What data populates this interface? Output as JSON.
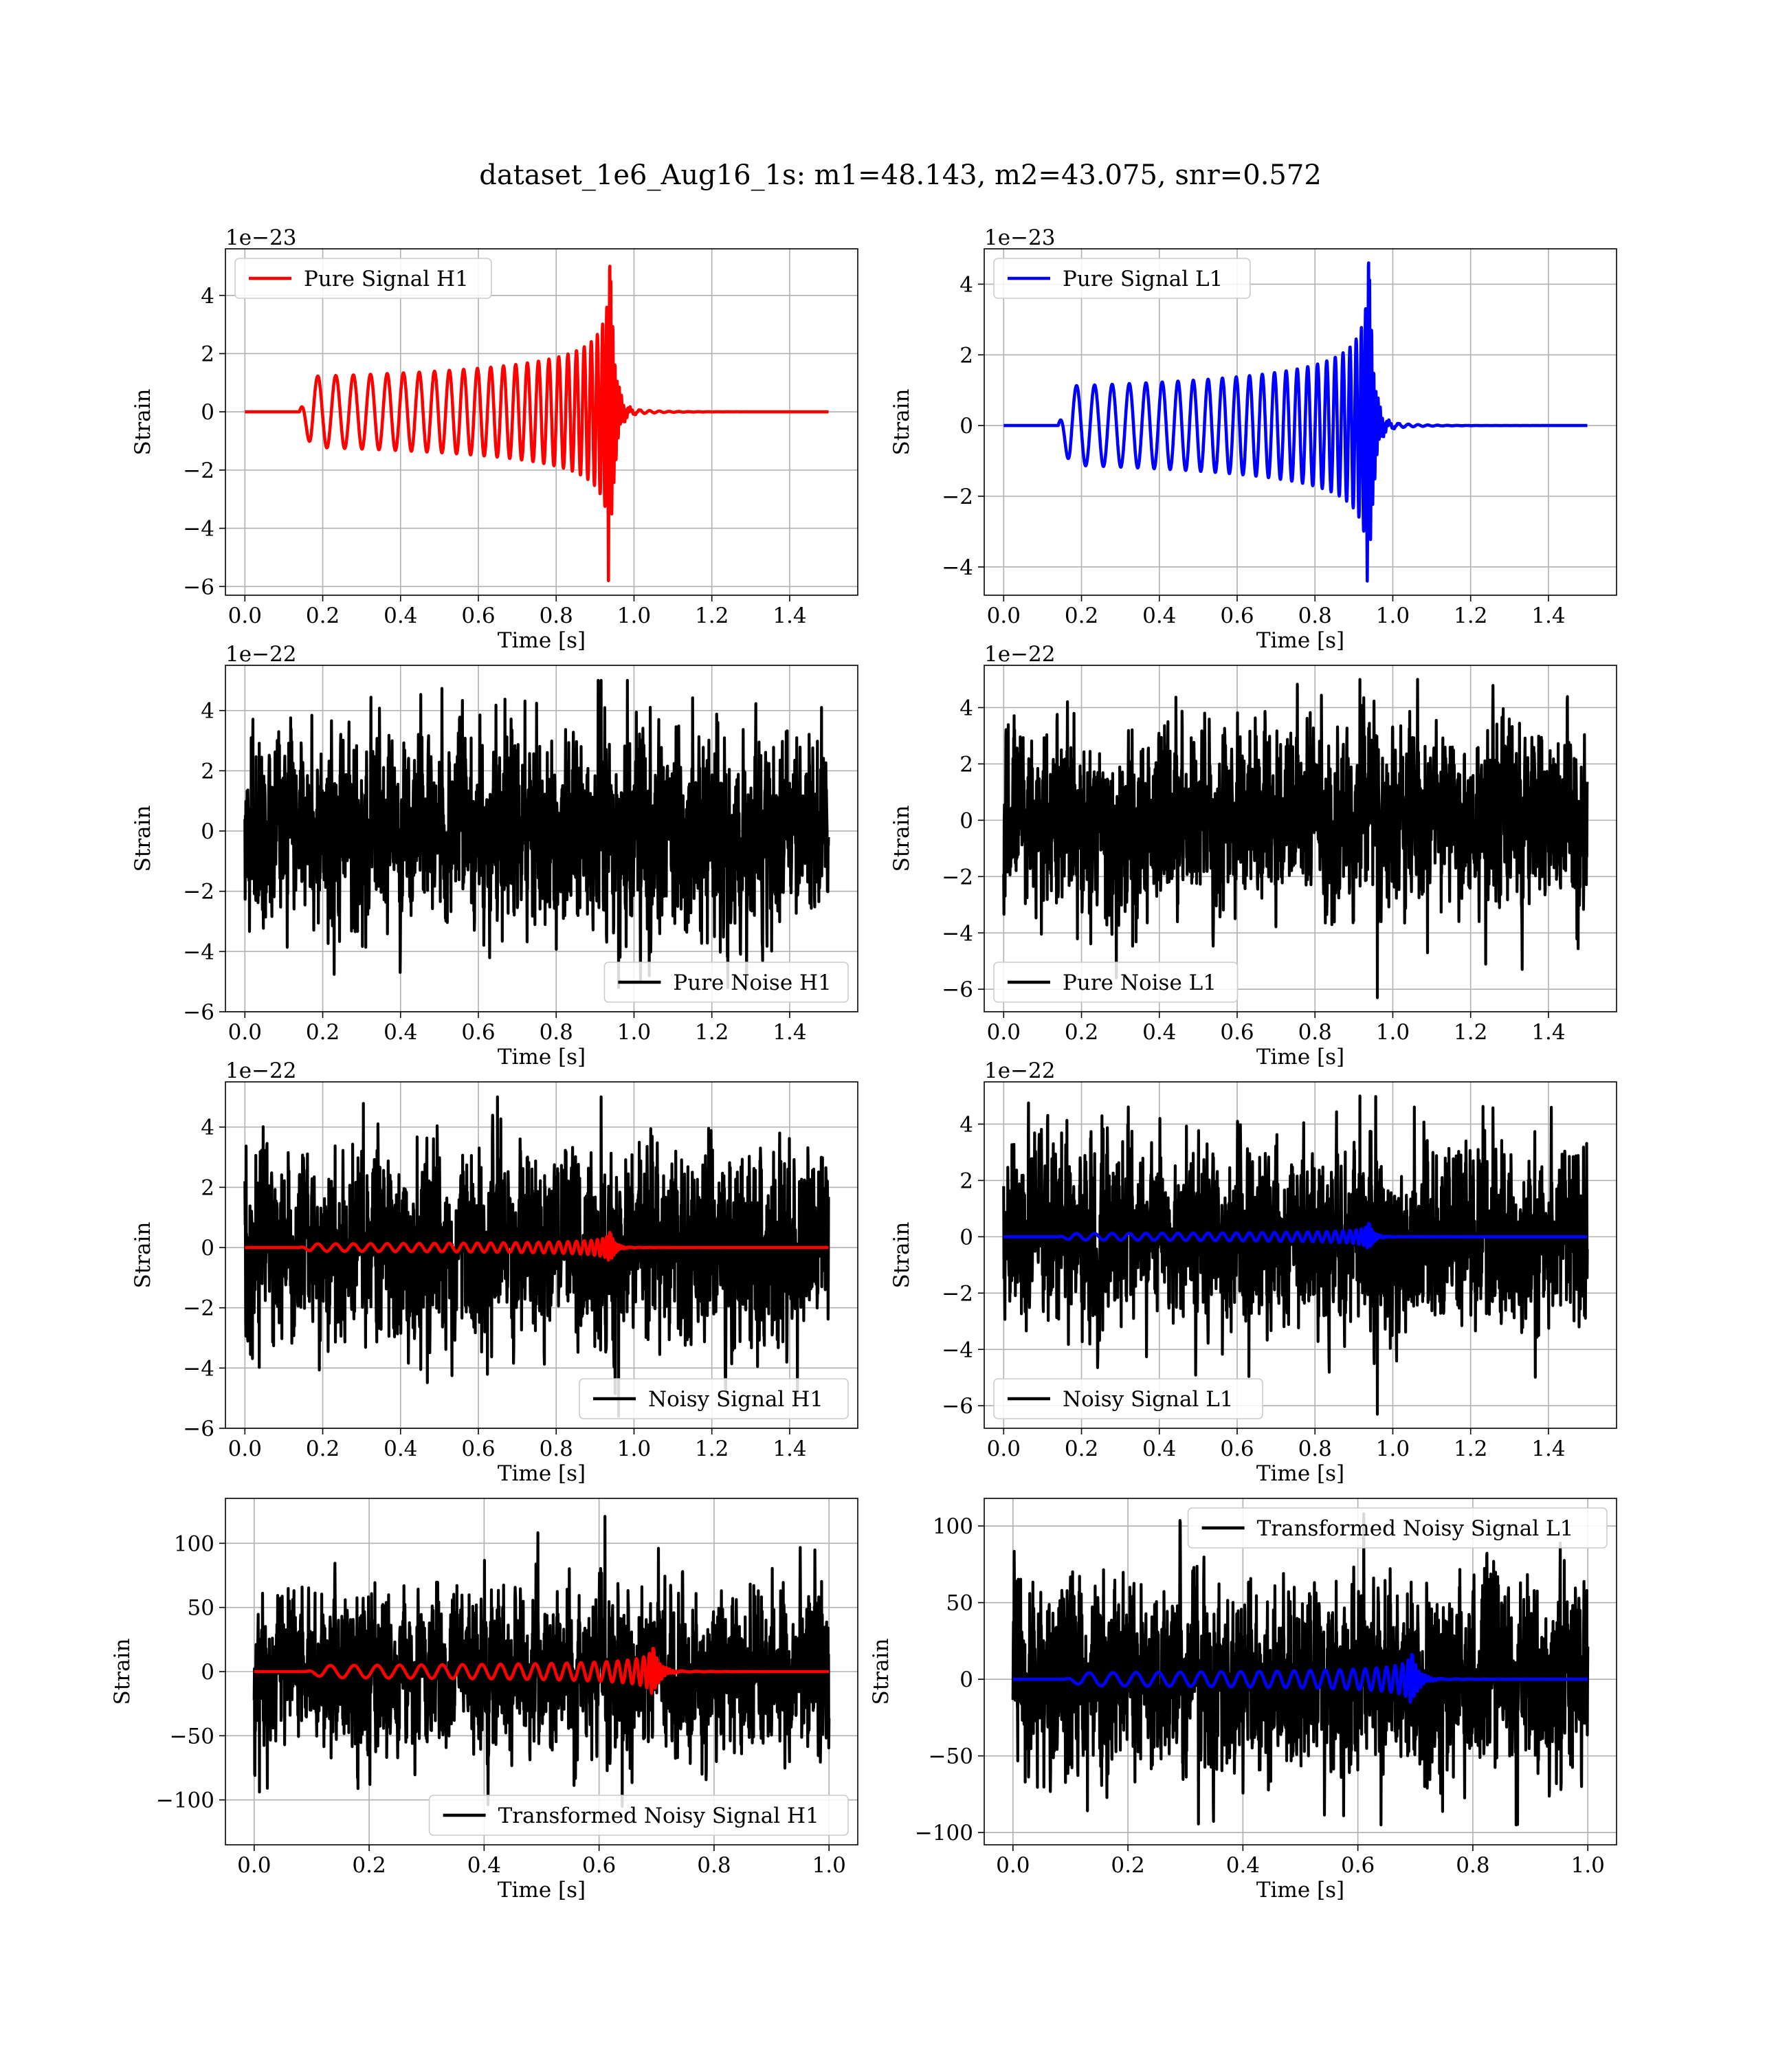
{
  "suptitle": "dataset_1e6_Aug16_1s: m1=48.143, m2=43.075, snr=0.572",
  "colors": {
    "h1": "#ff0000",
    "l1": "#0000ff",
    "noise": "#000000",
    "grid": "#b0b0b0"
  },
  "chart_data": [
    {
      "type": "line",
      "id": "pure-signal-h1",
      "xlabel": "Time [s]",
      "ylabel": "Strain",
      "offset_text": "1e−23",
      "xlim": [
        -0.05,
        1.575
      ],
      "ylim": [
        -6.3,
        5.6
      ],
      "xticks": [
        0.0,
        0.2,
        0.4,
        0.6,
        0.8,
        1.0,
        1.2,
        1.4
      ],
      "xtick_labels": [
        "0.0",
        "0.2",
        "0.4",
        "0.6",
        "0.8",
        "1.0",
        "1.2",
        "1.4"
      ],
      "yticks": [
        -6,
        -4,
        -2,
        0,
        2,
        4
      ],
      "ytick_labels": [
        "−6",
        "−4",
        "−2",
        "0",
        "2",
        "4"
      ],
      "legend": {
        "placement": "upper left",
        "entries": [
          {
            "label": "Pure Signal H1",
            "color": "#ff0000"
          }
        ]
      },
      "series": [
        {
          "name": "Pure Signal H1",
          "kind": "chirp",
          "color": "#ff0000",
          "t_start": 0.0,
          "t_end": 1.5,
          "t_onset": 0.14,
          "t_merger": 0.94,
          "min_value": -5.8,
          "max_value": 5.0,
          "peak_amplitude": 5.0
        }
      ]
    },
    {
      "type": "line",
      "id": "pure-signal-l1",
      "xlabel": "Time [s]",
      "ylabel": "Strain",
      "offset_text": "1e−23",
      "xlim": [
        -0.05,
        1.575
      ],
      "ylim": [
        -4.8,
        5.0
      ],
      "xticks": [
        0.0,
        0.2,
        0.4,
        0.6,
        0.8,
        1.0,
        1.2,
        1.4
      ],
      "xtick_labels": [
        "0.0",
        "0.2",
        "0.4",
        "0.6",
        "0.8",
        "1.0",
        "1.2",
        "1.4"
      ],
      "yticks": [
        -4,
        -2,
        0,
        2,
        4
      ],
      "ytick_labels": [
        "−4",
        "−2",
        "0",
        "2",
        "4"
      ],
      "legend": {
        "placement": "upper left",
        "entries": [
          {
            "label": "Pure Signal L1",
            "color": "#0000ff"
          }
        ]
      },
      "series": [
        {
          "name": "Pure Signal L1",
          "kind": "chirp",
          "color": "#0000ff",
          "t_start": 0.0,
          "t_end": 1.5,
          "t_onset": 0.14,
          "t_merger": 0.94,
          "min_value": -4.4,
          "max_value": 4.7,
          "peak_amplitude": 4.6
        }
      ]
    },
    {
      "type": "line",
      "id": "pure-noise-h1",
      "xlabel": "Time [s]",
      "ylabel": "Strain",
      "offset_text": "1e−22",
      "xlim": [
        -0.05,
        1.575
      ],
      "ylim": [
        -6.0,
        5.5
      ],
      "xticks": [
        0.0,
        0.2,
        0.4,
        0.6,
        0.8,
        1.0,
        1.2,
        1.4
      ],
      "xtick_labels": [
        "0.0",
        "0.2",
        "0.4",
        "0.6",
        "0.8",
        "1.0",
        "1.2",
        "1.4"
      ],
      "yticks": [
        -6,
        -4,
        -2,
        0,
        2,
        4
      ],
      "ytick_labels": [
        "−6",
        "−4",
        "−2",
        "0",
        "2",
        "4"
      ],
      "legend": {
        "placement": "lower right",
        "entries": [
          {
            "label": "Pure Noise H1",
            "color": "#000000"
          }
        ]
      },
      "series": [
        {
          "name": "Pure Noise H1",
          "kind": "noise",
          "color": "#000000",
          "t_start": 0.0,
          "t_end": 1.5,
          "min_value": -5.2,
          "max_value": 5.0,
          "std": 1.55
        }
      ]
    },
    {
      "type": "line",
      "id": "pure-noise-l1",
      "xlabel": "Time [s]",
      "ylabel": "Strain",
      "offset_text": "1e−22",
      "xlim": [
        -0.05,
        1.575
      ],
      "ylim": [
        -6.8,
        5.5
      ],
      "xticks": [
        0.0,
        0.2,
        0.4,
        0.6,
        0.8,
        1.0,
        1.2,
        1.4
      ],
      "xtick_labels": [
        "0.0",
        "0.2",
        "0.4",
        "0.6",
        "0.8",
        "1.0",
        "1.2",
        "1.4"
      ],
      "yticks": [
        -6,
        -4,
        -2,
        0,
        2,
        4
      ],
      "ytick_labels": [
        "−6",
        "−4",
        "−2",
        "0",
        "2",
        "4"
      ],
      "legend": {
        "placement": "lower left",
        "entries": [
          {
            "label": "Pure Noise L1",
            "color": "#000000"
          }
        ]
      },
      "series": [
        {
          "name": "Pure Noise L1",
          "kind": "noise",
          "color": "#000000",
          "t_start": 0.0,
          "t_end": 1.5,
          "min_value": -6.3,
          "max_value": 5.0,
          "std": 1.55
        }
      ]
    },
    {
      "type": "line",
      "id": "noisy-signal-h1",
      "xlabel": "Time [s]",
      "ylabel": "Strain",
      "offset_text": "1e−22",
      "xlim": [
        -0.05,
        1.575
      ],
      "ylim": [
        -6.0,
        5.5
      ],
      "xticks": [
        0.0,
        0.2,
        0.4,
        0.6,
        0.8,
        1.0,
        1.2,
        1.4
      ],
      "xtick_labels": [
        "0.0",
        "0.2",
        "0.4",
        "0.6",
        "0.8",
        "1.0",
        "1.2",
        "1.4"
      ],
      "yticks": [
        -6,
        -4,
        -2,
        0,
        2,
        4
      ],
      "ytick_labels": [
        "−6",
        "−4",
        "−2",
        "0",
        "2",
        "4"
      ],
      "legend": {
        "placement": "lower right",
        "entries": [
          {
            "label": "Noisy Signal H1",
            "color": "#000000"
          }
        ]
      },
      "series": [
        {
          "name": "Noisy Signal H1",
          "kind": "noise",
          "color": "#000000",
          "t_start": 0.0,
          "t_end": 1.5,
          "min_value": -5.6,
          "max_value": 5.0,
          "std": 1.55
        },
        {
          "kind": "chirp",
          "color": "#ff0000",
          "t_start": 0.0,
          "t_end": 1.5,
          "t_onset": 0.14,
          "t_merger": 0.94,
          "peak_amplitude": 0.5
        }
      ]
    },
    {
      "type": "line",
      "id": "noisy-signal-l1",
      "xlabel": "Time [s]",
      "ylabel": "Strain",
      "offset_text": "1e−22",
      "xlim": [
        -0.05,
        1.575
      ],
      "ylim": [
        -6.8,
        5.5
      ],
      "xticks": [
        0.0,
        0.2,
        0.4,
        0.6,
        0.8,
        1.0,
        1.2,
        1.4
      ],
      "xtick_labels": [
        "0.0",
        "0.2",
        "0.4",
        "0.6",
        "0.8",
        "1.0",
        "1.2",
        "1.4"
      ],
      "yticks": [
        -6,
        -4,
        -2,
        0,
        2,
        4
      ],
      "ytick_labels": [
        "−6",
        "−4",
        "−2",
        "0",
        "2",
        "4"
      ],
      "legend": {
        "placement": "lower left",
        "entries": [
          {
            "label": "Noisy Signal L1",
            "color": "#000000"
          }
        ]
      },
      "series": [
        {
          "name": "Noisy Signal L1",
          "kind": "noise",
          "color": "#000000",
          "t_start": 0.0,
          "t_end": 1.5,
          "min_value": -6.3,
          "max_value": 5.0,
          "std": 1.55
        },
        {
          "kind": "chirp",
          "color": "#0000ff",
          "t_start": 0.0,
          "t_end": 1.5,
          "t_onset": 0.14,
          "t_merger": 0.94,
          "peak_amplitude": 0.47
        }
      ]
    },
    {
      "type": "line",
      "id": "transformed-noisy-signal-h1",
      "xlabel": "Time [s]",
      "ylabel": "Strain",
      "offset_text": "",
      "xlim": [
        -0.05,
        1.05
      ],
      "ylim": [
        -135,
        135
      ],
      "xticks": [
        0.0,
        0.2,
        0.4,
        0.6,
        0.8,
        1.0
      ],
      "xtick_labels": [
        "0.0",
        "0.2",
        "0.4",
        "0.6",
        "0.8",
        "1.0"
      ],
      "yticks": [
        -100,
        -50,
        0,
        50,
        100
      ],
      "ytick_labels": [
        "−100",
        "−50",
        "0",
        "50",
        "100"
      ],
      "legend": {
        "placement": "lower right",
        "entries": [
          {
            "label": "Transformed Noisy Signal H1",
            "color": "#000000"
          }
        ]
      },
      "series": [
        {
          "name": "Transformed Noisy Signal H1",
          "kind": "noise",
          "color": "#000000",
          "t_start": 0.0,
          "t_end": 1.0,
          "min_value": -105,
          "max_value": 121,
          "std": 30
        },
        {
          "kind": "chirp",
          "color": "#ff0000",
          "t_start": 0.0,
          "t_end": 1.0,
          "t_onset": 0.09,
          "t_merger": 0.695,
          "peak_amplitude": 18
        }
      ]
    },
    {
      "type": "line",
      "id": "transformed-noisy-signal-l1",
      "xlabel": "Time [s]",
      "ylabel": "Strain",
      "offset_text": "",
      "xlim": [
        -0.05,
        1.05
      ],
      "ylim": [
        -108,
        118
      ],
      "xticks": [
        0.0,
        0.2,
        0.4,
        0.6,
        0.8,
        1.0
      ],
      "xtick_labels": [
        "0.0",
        "0.2",
        "0.4",
        "0.6",
        "0.8",
        "1.0"
      ],
      "yticks": [
        -100,
        -50,
        0,
        50,
        100
      ],
      "ytick_labels": [
        "−100",
        "−50",
        "0",
        "50",
        "100"
      ],
      "legend": {
        "placement": "upper right",
        "entries": [
          {
            "label": "Transformed Noisy Signal L1",
            "color": "#000000"
          }
        ]
      },
      "series": [
        {
          "name": "Transformed Noisy Signal L1",
          "kind": "noise",
          "color": "#000000",
          "t_start": 0.0,
          "t_end": 1.0,
          "min_value": -95,
          "max_value": 108,
          "std": 30
        },
        {
          "kind": "chirp",
          "color": "#0000ff",
          "t_start": 0.0,
          "t_end": 1.0,
          "t_onset": 0.09,
          "t_merger": 0.695,
          "peak_amplitude": 16
        }
      ]
    }
  ]
}
